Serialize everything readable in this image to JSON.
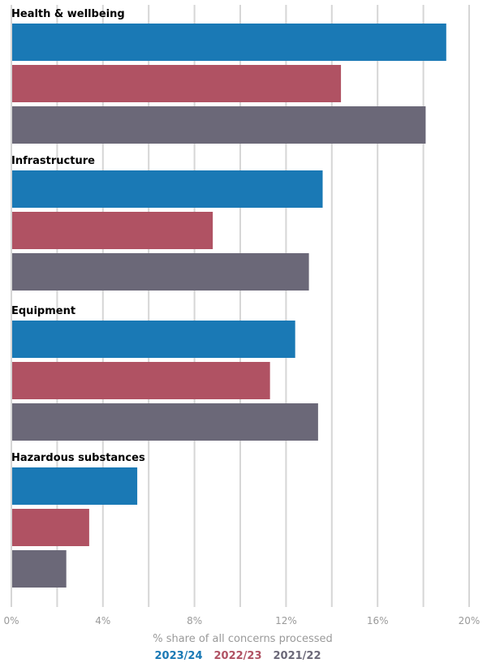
{
  "chart_data": {
    "type": "bar",
    "orientation": "horizontal",
    "categories": [
      "Health & wellbeing",
      "Infrastructure",
      "Equipment",
      "Hazardous substances"
    ],
    "series": [
      {
        "name": "2023/24",
        "color": "#1a79b5",
        "values": [
          19.0,
          13.6,
          12.4,
          5.5
        ]
      },
      {
        "name": "2022/23",
        "color": "#b05263",
        "values": [
          14.4,
          8.8,
          11.3,
          3.4
        ]
      },
      {
        "name": "2021/22",
        "color": "#6b6878",
        "values": [
          18.1,
          13.0,
          13.4,
          2.4
        ]
      }
    ],
    "xlabel": "% share of all concerns processed",
    "xlim": [
      0,
      20
    ],
    "xticks": [
      0,
      4,
      8,
      12,
      16,
      20
    ],
    "xtick_labels": [
      "0%",
      "4%",
      "8%",
      "12%",
      "16%",
      "20%"
    ],
    "grid": true,
    "legend_position": "bottom"
  }
}
